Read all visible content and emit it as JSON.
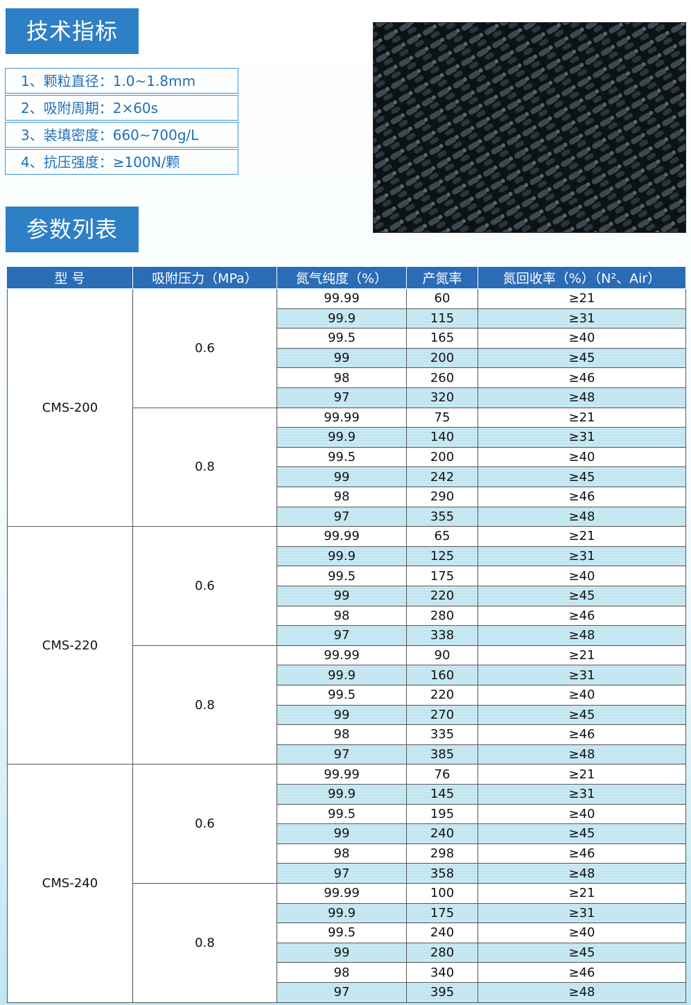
{
  "section1": {
    "title": "技术指标",
    "specs": [
      "1、颗粒直径：1.0~1.8mm",
      "2、吸附周期：2×60s",
      "3、装填密度：660~700g/L",
      "4、抗压强度：≥100N/颗"
    ]
  },
  "section2": {
    "title": "参数列表"
  },
  "table": {
    "header": [
      "型 号",
      "吸附压力（MPa）",
      "氮气纯度（%）",
      "产氮率",
      "氮回收率（%）（N²、Air）"
    ],
    "groups": [
      {
        "model": "CMS-200",
        "pressures": [
          {
            "pressure": "0.6",
            "rows": [
              [
                "99.99",
                "60",
                "≥21"
              ],
              [
                "99.9",
                "115",
                "≥31"
              ],
              [
                "99.5",
                "165",
                "≥40"
              ],
              [
                "99",
                "200",
                "≥45"
              ],
              [
                "98",
                "260",
                "≥46"
              ],
              [
                "97",
                "320",
                "≥48"
              ]
            ]
          },
          {
            "pressure": "0.8",
            "rows": [
              [
                "99.99",
                "75",
                "≥21"
              ],
              [
                "99.9",
                "140",
                "≥31"
              ],
              [
                "99.5",
                "200",
                "≥40"
              ],
              [
                "99",
                "242",
                "≥45"
              ],
              [
                "98",
                "290",
                "≥46"
              ],
              [
                "97",
                "355",
                "≥48"
              ]
            ]
          }
        ]
      },
      {
        "model": "CMS-220",
        "pressures": [
          {
            "pressure": "0.6",
            "rows": [
              [
                "99.99",
                "65",
                "≥21"
              ],
              [
                "99.9",
                "125",
                "≥31"
              ],
              [
                "99.5",
                "175",
                "≥40"
              ],
              [
                "99",
                "220",
                "≥45"
              ],
              [
                "98",
                "280",
                "≥46"
              ],
              [
                "97",
                "338",
                "≥48"
              ]
            ]
          },
          {
            "pressure": "0.8",
            "rows": [
              [
                "99.99",
                "90",
                "≥21"
              ],
              [
                "99.9",
                "160",
                "≥31"
              ],
              [
                "99.5",
                "220",
                "≥40"
              ],
              [
                "99",
                "270",
                "≥45"
              ],
              [
                "98",
                "335",
                "≥46"
              ],
              [
                "97",
                "385",
                "≥48"
              ]
            ]
          }
        ]
      },
      {
        "model": "CMS-240",
        "pressures": [
          {
            "pressure": "0.6",
            "rows": [
              [
                "99.99",
                "76",
                "≥21"
              ],
              [
                "99.9",
                "145",
                "≥31"
              ],
              [
                "99.5",
                "195",
                "≥40"
              ],
              [
                "99",
                "240",
                "≥45"
              ],
              [
                "98",
                "298",
                "≥46"
              ],
              [
                "97",
                "358",
                "≥48"
              ]
            ]
          },
          {
            "pressure": "0.8",
            "rows": [
              [
                "99.99",
                "100",
                "≥21"
              ],
              [
                "99.9",
                "175",
                "≥31"
              ],
              [
                "99.5",
                "240",
                "≥40"
              ],
              [
                "99",
                "280",
                "≥45"
              ],
              [
                "98",
                "340",
                "≥46"
              ],
              [
                "97",
                "395",
                "≥48"
              ]
            ]
          }
        ]
      }
    ]
  }
}
